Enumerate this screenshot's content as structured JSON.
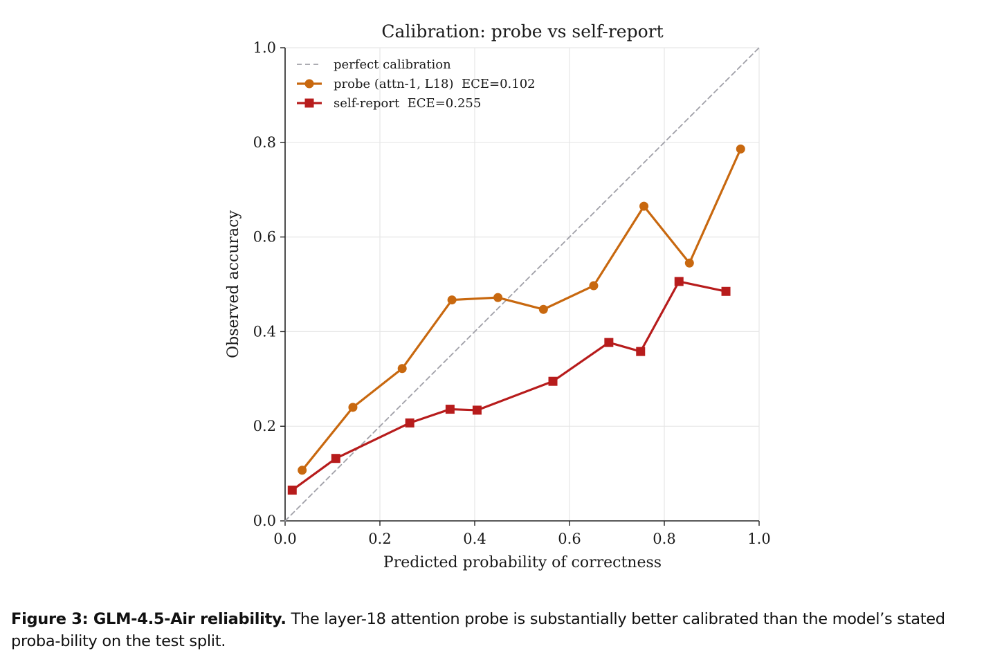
{
  "chart_data": {
    "type": "line",
    "title": "Calibration: probe vs self-report",
    "xlabel": "Predicted probability of correctness",
    "ylabel": "Observed accuracy",
    "xlim": [
      0.0,
      1.0
    ],
    "ylim": [
      0.0,
      1.0
    ],
    "xticks": [
      "0.0",
      "0.2",
      "0.4",
      "0.6",
      "0.8",
      "1.0"
    ],
    "yticks": [
      "0.0",
      "0.2",
      "0.4",
      "0.6",
      "0.8",
      "1.0"
    ],
    "grid": true,
    "legend_position": "top-left",
    "series": [
      {
        "name": "perfect calibration",
        "style": "dashed",
        "marker": "none",
        "color": "#a0a0a8",
        "x": [
          0.0,
          1.0
        ],
        "y": [
          0.0,
          1.0
        ]
      },
      {
        "name": "probe (attn-1, L18)  ECE=0.102",
        "style": "solid",
        "marker": "circle",
        "color": "#c8680f",
        "x": [
          0.036,
          0.143,
          0.247,
          0.352,
          0.449,
          0.545,
          0.651,
          0.757,
          0.853,
          0.961
        ],
        "y": [
          0.107,
          0.24,
          0.322,
          0.467,
          0.472,
          0.447,
          0.497,
          0.665,
          0.545,
          0.786
        ]
      },
      {
        "name": "self-report  ECE=0.255",
        "style": "solid",
        "marker": "square",
        "color": "#b71c1c",
        "x": [
          0.015,
          0.107,
          0.263,
          0.348,
          0.405,
          0.565,
          0.683,
          0.75,
          0.831,
          0.93
        ],
        "y": [
          0.065,
          0.132,
          0.207,
          0.236,
          0.234,
          0.295,
          0.377,
          0.358,
          0.506,
          0.485
        ]
      }
    ]
  },
  "caption": {
    "label": "Figure 3: GLM-4.5-Air reliability.",
    "text": " The layer-18 attention probe is substantially better calibrated than the model’s stated proba-bility on the test split."
  }
}
